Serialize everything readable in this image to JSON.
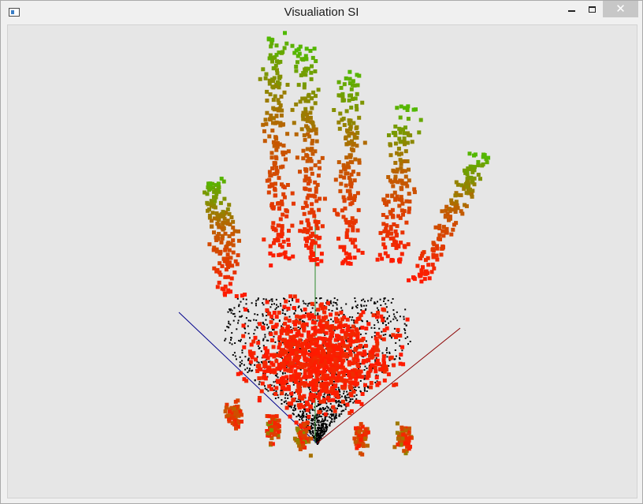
{
  "window": {
    "title": "Visualiation SI"
  },
  "controls": {
    "minimize_icon": "minimize-icon",
    "maximize_icon": "maximize-icon",
    "close_icon": "close-icon",
    "close_glyph": "✕"
  },
  "scene": {
    "background": "#e6e6e6",
    "colors": {
      "axis_x": "#8b0000",
      "axis_y": "#2e8b2e",
      "axis_z": "#00008b",
      "surface_points": "#000000",
      "hand_low": "#ff1a00",
      "hand_mid": "#c45a00",
      "hand_high": "#44c400"
    }
  }
}
